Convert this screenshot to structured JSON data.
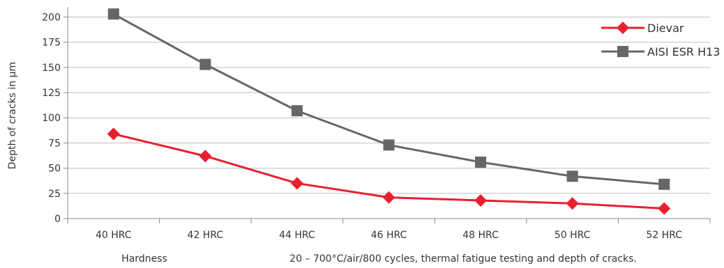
{
  "chart_data": {
    "type": "line",
    "categories": [
      "40 HRC",
      "42 HRC",
      "44 HRC",
      "46 HRC",
      "48 HRC",
      "50 HRC",
      "52 HRC"
    ],
    "series": [
      {
        "name": "Dievar",
        "values": [
          84,
          62,
          35,
          21,
          18,
          15,
          10
        ],
        "color": "#e8202e",
        "marker": "diamond"
      },
      {
        "name": "AISI ESR H13",
        "values": [
          203,
          153,
          107,
          73,
          56,
          42,
          34
        ],
        "color": "#666666",
        "marker": "square"
      }
    ],
    "ylabel": "Depth of cracks in µm",
    "xlabel": "Hardness",
    "caption": "20 – 700°C/air/800 cycles, thermal fatigue testing and depth of cracks.",
    "yticks": [
      0,
      25,
      50,
      75,
      100,
      125,
      150,
      175,
      200
    ],
    "ylim": [
      0,
      210
    ],
    "legend_position": "top-right",
    "grid": "horizontal"
  }
}
